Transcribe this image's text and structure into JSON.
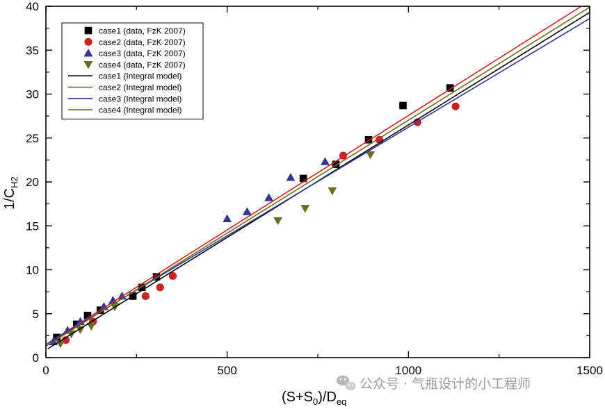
{
  "chart_data": {
    "type": "scatter",
    "xlabel": {
      "main": "(S+S",
      "sub1": "0",
      "mid": ")/D",
      "sub2": "eq"
    },
    "ylabel": {
      "main": "1/C",
      "sub": "H2"
    },
    "xlim": [
      0,
      1500
    ],
    "ylim": [
      0,
      40
    ],
    "xticks": [
      0,
      500,
      1000,
      1500
    ],
    "xtick_labels": [
      "0",
      "500",
      "1000",
      "1500"
    ],
    "yticks": [
      0,
      5,
      10,
      15,
      20,
      25,
      30,
      35,
      40
    ],
    "ytick_labels": [
      "0",
      "5",
      "10",
      "15",
      "20",
      "25",
      "30",
      "35",
      "40"
    ],
    "grid": false,
    "legend_position": "top-left",
    "series": [
      {
        "name": "case1 (data, FzK 2007)",
        "kind": "points",
        "marker": "square",
        "color": "#000000",
        "x": [
          30,
          85,
          115,
          150,
          240,
          265,
          305,
          710,
          800,
          890,
          985,
          1115
        ],
        "y": [
          2.3,
          3.8,
          4.8,
          5.4,
          7.0,
          8.0,
          9.2,
          20.4,
          22.0,
          24.8,
          28.7,
          30.7
        ]
      },
      {
        "name": "case2 (data, FzK 2007)",
        "kind": "points",
        "marker": "circle",
        "color": "#cc2222",
        "x": [
          55,
          130,
          275,
          315,
          350,
          820,
          920,
          1025,
          1130
        ],
        "y": [
          2.0,
          4.1,
          7.0,
          8.0,
          9.3,
          23.0,
          24.8,
          26.8,
          28.6
        ]
      },
      {
        "name": "case3 (data, FzK 2007)",
        "kind": "points",
        "marker": "triangle-up",
        "color": "#333399",
        "x": [
          20,
          60,
          95,
          160,
          185,
          210,
          500,
          555,
          615,
          675,
          770
        ],
        "y": [
          1.8,
          3.1,
          4.1,
          5.8,
          6.5,
          7.0,
          15.8,
          16.6,
          18.2,
          20.5,
          22.3
        ]
      },
      {
        "name": "case4 (data, FzK 2007)",
        "kind": "points",
        "marker": "triangle-down",
        "color": "#6b6b22",
        "x": [
          40,
          70,
          95,
          125,
          190,
          640,
          715,
          790,
          895
        ],
        "y": [
          1.6,
          2.7,
          3.2,
          3.6,
          5.8,
          15.6,
          17.0,
          19.0,
          23.1
        ]
      },
      {
        "name": "case1 (Integral model)",
        "kind": "line",
        "color": "#000000",
        "x": [
          5,
          1500
        ],
        "y": [
          1.0,
          39.3
        ]
      },
      {
        "name": "case2 (Integral model)",
        "kind": "line",
        "color": "#cc2222",
        "x": [
          0,
          1500
        ],
        "y": [
          1.5,
          40.6
        ]
      },
      {
        "name": "case3 (Integral model)",
        "kind": "line",
        "color": "#333399",
        "x": [
          0,
          1500
        ],
        "y": [
          1.5,
          38.6
        ]
      },
      {
        "name": "case4 (Integral model)",
        "kind": "line",
        "color": "#6b6b22",
        "x": [
          0,
          1500
        ],
        "y": [
          1.3,
          39.9
        ]
      }
    ]
  },
  "watermark": {
    "text": "公众号 · 气瓶设计的小工程师",
    "icon": "wechat-icon"
  }
}
